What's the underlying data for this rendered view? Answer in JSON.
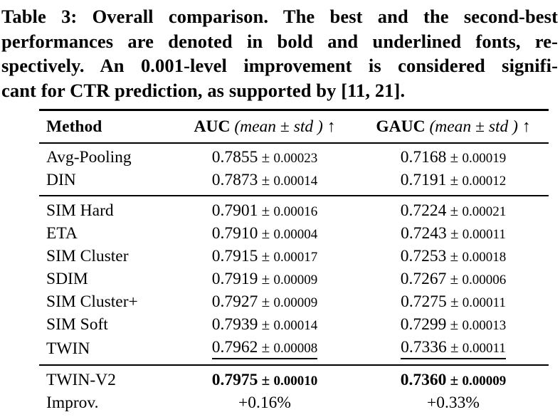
{
  "caption": {
    "lines": [
      "Table 3: Overall comparison. The best and the second-best",
      "performances are denoted in bold and underlined fonts, re-",
      "spectively. An 0.001-level improvement is considered signifi-",
      "cant for CTR prediction, as supported by [11, 21]."
    ],
    "full_text": "Table 3: Overall comparison. The best and the second-best performances are denoted in bold and underlined fonts, respectively. An 0.001-level improvement is considered significant for CTR prediction, as supported by [11, 21]."
  },
  "table": {
    "header": {
      "method": "Method",
      "auc_name": "AUC",
      "gauc_name": "GAUC",
      "open_paren": " (",
      "mean_label": "mean",
      "pm_spaced": " ± ",
      "std_label": "std",
      "close_paren": " ) ",
      "arrow": "↑"
    },
    "pm_spaced": " ± ",
    "rows": [
      {
        "method": "Avg-Pooling",
        "auc_mean": "0.7855",
        "auc_std": "0.00023",
        "gauc_mean": "0.7168",
        "gauc_std": "0.00019",
        "emphasis": "none"
      },
      {
        "method": "DIN",
        "auc_mean": "0.7873",
        "auc_std": "0.00014",
        "gauc_mean": "0.7191",
        "gauc_std": "0.00012",
        "emphasis": "none"
      },
      {
        "method": "SIM Hard",
        "auc_mean": "0.7901",
        "auc_std": "0.00016",
        "gauc_mean": "0.7224",
        "gauc_std": "0.00021",
        "emphasis": "none"
      },
      {
        "method": "ETA",
        "auc_mean": "0.7910",
        "auc_std": "0.00004",
        "gauc_mean": "0.7243",
        "gauc_std": "0.00011",
        "emphasis": "none"
      },
      {
        "method": "SIM Cluster",
        "auc_mean": "0.7915",
        "auc_std": "0.00017",
        "gauc_mean": "0.7253",
        "gauc_std": "0.00018",
        "emphasis": "none"
      },
      {
        "method": "SDIM",
        "auc_mean": "0.7919",
        "auc_std": "0.00009",
        "gauc_mean": "0.7267",
        "gauc_std": "0.00006",
        "emphasis": "none"
      },
      {
        "method": "SIM Cluster+",
        "auc_mean": "0.7927",
        "auc_std": "0.00009",
        "gauc_mean": "0.7275",
        "gauc_std": "0.00011",
        "emphasis": "none"
      },
      {
        "method": "SIM Soft",
        "auc_mean": "0.7939",
        "auc_std": "0.00014",
        "gauc_mean": "0.7299",
        "gauc_std": "0.00013",
        "emphasis": "none"
      },
      {
        "method": "TWIN",
        "auc_mean": "0.7962",
        "auc_std": "0.00008",
        "gauc_mean": "0.7336",
        "gauc_std": "0.00011",
        "emphasis": "underline"
      },
      {
        "method": "TWIN-V2",
        "auc_mean": "0.7975",
        "auc_std": "0.00010",
        "gauc_mean": "0.7360",
        "gauc_std": "0.00009",
        "emphasis": "bold"
      },
      {
        "method": "Improv.",
        "auc_value": "+0.16%",
        "gauc_value": "+0.33%",
        "emphasis": "none"
      }
    ]
  }
}
